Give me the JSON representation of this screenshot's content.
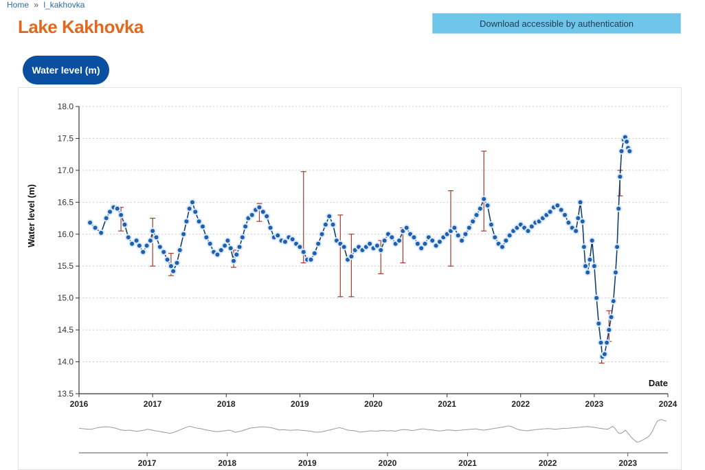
{
  "breadcrumb": {
    "home": "Home",
    "separator": "»",
    "current": "l_kakhovka"
  },
  "page": {
    "title": "Lake Kakhovka"
  },
  "download_button": {
    "label": "Download accessible by authentication"
  },
  "tab": {
    "label": "Water level (m)"
  },
  "colors": {
    "title": "#e0691e",
    "point_fill": "#1f5fae",
    "point_halo": "#d9e9f7",
    "line": "#123e6e",
    "error_bar": "#a33a2a",
    "grid": "#cccccc",
    "overview_line": "#999999"
  },
  "chart_data": {
    "type": "scatter",
    "title": "",
    "xlabel": "Date",
    "ylabel": "Water level (m)",
    "xlim": [
      2016,
      2024
    ],
    "ylim": [
      13.5,
      18.0
    ],
    "y_ticks": [
      "13.5",
      "14.0",
      "14.5",
      "15.0",
      "15.5",
      "16.0",
      "16.5",
      "17.0",
      "17.5",
      "18.0"
    ],
    "x_ticks": [
      "2016",
      "2017",
      "2018",
      "2019",
      "2020",
      "2021",
      "2022",
      "2023",
      "2024"
    ],
    "overview_ticks": [
      "2017",
      "2018",
      "2019",
      "2020",
      "2021",
      "2022",
      "2023"
    ],
    "grid": true,
    "series": [
      {
        "name": "Water level",
        "points": [
          [
            2016.15,
            16.18
          ],
          [
            2016.22,
            16.1
          ],
          [
            2016.3,
            16.02
          ],
          [
            2016.37,
            16.25
          ],
          [
            2016.42,
            16.35
          ],
          [
            2016.47,
            16.42
          ],
          [
            2016.52,
            16.4
          ],
          [
            2016.57,
            16.3
          ],
          [
            2016.62,
            16.15
          ],
          [
            2016.67,
            15.95
          ],
          [
            2016.72,
            15.85
          ],
          [
            2016.78,
            15.9
          ],
          [
            2016.82,
            15.82
          ],
          [
            2016.87,
            15.72
          ],
          [
            2016.92,
            15.82
          ],
          [
            2016.97,
            15.9
          ],
          [
            2017.0,
            16.05
          ],
          [
            2017.05,
            15.95
          ],
          [
            2017.1,
            15.8
          ],
          [
            2017.15,
            15.72
          ],
          [
            2017.2,
            15.6
          ],
          [
            2017.25,
            15.5
          ],
          [
            2017.28,
            15.42
          ],
          [
            2017.33,
            15.55
          ],
          [
            2017.37,
            15.75
          ],
          [
            2017.42,
            16.0
          ],
          [
            2017.46,
            16.2
          ],
          [
            2017.5,
            16.4
          ],
          [
            2017.54,
            16.5
          ],
          [
            2017.58,
            16.35
          ],
          [
            2017.63,
            16.2
          ],
          [
            2017.68,
            16.12
          ],
          [
            2017.73,
            15.95
          ],
          [
            2017.78,
            15.85
          ],
          [
            2017.83,
            15.72
          ],
          [
            2017.88,
            15.68
          ],
          [
            2017.93,
            15.75
          ],
          [
            2017.98,
            15.82
          ],
          [
            2018.02,
            15.9
          ],
          [
            2018.06,
            15.78
          ],
          [
            2018.1,
            15.58
          ],
          [
            2018.14,
            15.68
          ],
          [
            2018.18,
            15.8
          ],
          [
            2018.22,
            15.95
          ],
          [
            2018.26,
            16.12
          ],
          [
            2018.3,
            16.25
          ],
          [
            2018.35,
            16.3
          ],
          [
            2018.4,
            16.38
          ],
          [
            2018.45,
            16.42
          ],
          [
            2018.5,
            16.35
          ],
          [
            2018.55,
            16.28
          ],
          [
            2018.6,
            16.1
          ],
          [
            2018.65,
            15.95
          ],
          [
            2018.7,
            15.98
          ],
          [
            2018.75,
            15.9
          ],
          [
            2018.8,
            15.88
          ],
          [
            2018.85,
            15.95
          ],
          [
            2018.9,
            15.92
          ],
          [
            2018.95,
            15.85
          ],
          [
            2019.0,
            15.8
          ],
          [
            2019.05,
            15.72
          ],
          [
            2019.1,
            15.6
          ],
          [
            2019.15,
            15.6
          ],
          [
            2019.2,
            15.7
          ],
          [
            2019.25,
            15.85
          ],
          [
            2019.3,
            16.0
          ],
          [
            2019.35,
            16.15
          ],
          [
            2019.4,
            16.28
          ],
          [
            2019.45,
            16.15
          ],
          [
            2019.5,
            15.9
          ],
          [
            2019.55,
            15.85
          ],
          [
            2019.6,
            15.8
          ],
          [
            2019.65,
            15.6
          ],
          [
            2019.7,
            15.65
          ],
          [
            2019.75,
            15.75
          ],
          [
            2019.8,
            15.8
          ],
          [
            2019.85,
            15.75
          ],
          [
            2019.9,
            15.8
          ],
          [
            2019.95,
            15.85
          ],
          [
            2020.0,
            15.78
          ],
          [
            2020.05,
            15.82
          ],
          [
            2020.1,
            15.75
          ],
          [
            2020.15,
            15.9
          ],
          [
            2020.2,
            16.0
          ],
          [
            2020.25,
            15.95
          ],
          [
            2020.3,
            15.85
          ],
          [
            2020.35,
            15.9
          ],
          [
            2020.4,
            16.05
          ],
          [
            2020.45,
            16.1
          ],
          [
            2020.5,
            16.0
          ],
          [
            2020.55,
            15.95
          ],
          [
            2020.6,
            15.85
          ],
          [
            2020.65,
            15.78
          ],
          [
            2020.7,
            15.85
          ],
          [
            2020.75,
            15.95
          ],
          [
            2020.8,
            15.9
          ],
          [
            2020.85,
            15.82
          ],
          [
            2020.9,
            15.88
          ],
          [
            2020.95,
            15.95
          ],
          [
            2021.0,
            16.0
          ],
          [
            2021.05,
            16.05
          ],
          [
            2021.1,
            16.1
          ],
          [
            2021.15,
            15.98
          ],
          [
            2021.2,
            15.9
          ],
          [
            2021.25,
            16.0
          ],
          [
            2021.3,
            16.1
          ],
          [
            2021.35,
            16.2
          ],
          [
            2021.4,
            16.3
          ],
          [
            2021.45,
            16.4
          ],
          [
            2021.5,
            16.55
          ],
          [
            2021.55,
            16.45
          ],
          [
            2021.6,
            16.15
          ],
          [
            2021.65,
            15.95
          ],
          [
            2021.7,
            15.85
          ],
          [
            2021.75,
            15.8
          ],
          [
            2021.8,
            15.9
          ],
          [
            2021.85,
            15.98
          ],
          [
            2021.9,
            16.05
          ],
          [
            2021.95,
            16.1
          ],
          [
            2022.0,
            16.15
          ],
          [
            2022.05,
            16.1
          ],
          [
            2022.1,
            16.05
          ],
          [
            2022.15,
            16.12
          ],
          [
            2022.2,
            16.18
          ],
          [
            2022.25,
            16.2
          ],
          [
            2022.3,
            16.25
          ],
          [
            2022.35,
            16.3
          ],
          [
            2022.4,
            16.35
          ],
          [
            2022.45,
            16.42
          ],
          [
            2022.5,
            16.45
          ],
          [
            2022.55,
            16.38
          ],
          [
            2022.6,
            16.3
          ],
          [
            2022.65,
            16.18
          ],
          [
            2022.7,
            16.1
          ],
          [
            2022.75,
            16.05
          ],
          [
            2022.78,
            16.25
          ],
          [
            2022.81,
            16.5
          ],
          [
            2022.84,
            16.2
          ],
          [
            2022.86,
            15.8
          ],
          [
            2022.88,
            15.5
          ],
          [
            2022.91,
            15.4
          ],
          [
            2022.94,
            15.6
          ],
          [
            2022.97,
            15.9
          ],
          [
            2023.0,
            15.5
          ],
          [
            2023.03,
            15.0
          ],
          [
            2023.06,
            14.6
          ],
          [
            2023.09,
            14.3
          ],
          [
            2023.11,
            14.08
          ],
          [
            2023.14,
            14.12
          ],
          [
            2023.17,
            14.3
          ],
          [
            2023.2,
            14.5
          ],
          [
            2023.23,
            14.7
          ],
          [
            2023.26,
            14.95
          ],
          [
            2023.29,
            15.4
          ],
          [
            2023.31,
            15.8
          ],
          [
            2023.33,
            16.4
          ],
          [
            2023.35,
            16.9
          ],
          [
            2023.37,
            17.3
          ],
          [
            2023.4,
            17.48
          ],
          [
            2023.42,
            17.52
          ],
          [
            2023.44,
            17.45
          ],
          [
            2023.46,
            17.35
          ],
          [
            2023.48,
            17.3
          ]
        ]
      }
    ],
    "error_bars": [
      [
        2017.0,
        15.5,
        16.25
      ],
      [
        2019.05,
        15.55,
        16.98
      ],
      [
        2019.55,
        15.02,
        16.3
      ],
      [
        2019.7,
        15.02,
        16.0
      ],
      [
        2020.1,
        15.38,
        15.9
      ],
      [
        2021.05,
        15.5,
        16.68
      ],
      [
        2021.5,
        16.05,
        17.3
      ],
      [
        2017.25,
        15.35,
        15.7
      ],
      [
        2018.1,
        15.48,
        15.75
      ],
      [
        2023.1,
        13.98,
        14.3
      ],
      [
        2023.2,
        14.32,
        14.8
      ],
      [
        2023.35,
        16.6,
        17.0
      ],
      [
        2016.57,
        16.05,
        16.42
      ],
      [
        2018.45,
        16.2,
        16.48
      ],
      [
        2020.4,
        15.55,
        16.1
      ]
    ]
  }
}
